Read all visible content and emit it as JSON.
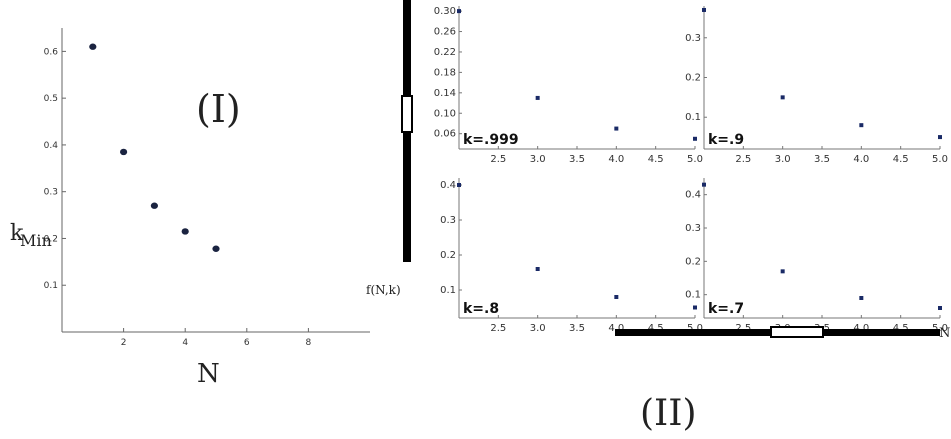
{
  "chart_data": [
    {
      "type": "scatter",
      "panel_label": "(I)",
      "xlabel": "N",
      "ylabel_main": "k",
      "ylabel_sub": "Min",
      "x_ticks": [
        "2",
        "4",
        "6",
        "8"
      ],
      "y_ticks": [
        "0.1",
        "0.2",
        "0.3",
        "0.4",
        "0.5",
        "0.6"
      ],
      "xlim": [
        0,
        10
      ],
      "ylim": [
        0,
        0.65
      ],
      "points": [
        {
          "x": 1,
          "y": 0.61
        },
        {
          "x": 2,
          "y": 0.385
        },
        {
          "x": 3,
          "y": 0.27
        },
        {
          "x": 4,
          "y": 0.215
        },
        {
          "x": 5,
          "y": 0.178
        }
      ]
    },
    {
      "type": "scatter",
      "group_label": "(II)",
      "xlabel": "N",
      "ylabel": "f(N,k)",
      "panels": [
        {
          "label": "k=.999",
          "xlim": [
            2.0,
            5.0
          ],
          "ylim": [
            0.03,
            0.31
          ],
          "x_ticks": [
            "2.5",
            "3.0",
            "3.5",
            "4.0",
            "4.5",
            "5.0"
          ],
          "y_ticks": [
            "0.06",
            "0.10",
            "0.14",
            "0.18",
            "0.22",
            "0.26",
            "0.30"
          ],
          "points": [
            {
              "x": 2,
              "y": 0.3
            },
            {
              "x": 3,
              "y": 0.13
            },
            {
              "x": 4,
              "y": 0.07
            },
            {
              "x": 5,
              "y": 0.05
            }
          ]
        },
        {
          "label": "k=.9",
          "xlim": [
            2.0,
            5.0
          ],
          "ylim": [
            0.02,
            0.38
          ],
          "x_ticks": [
            "2.5",
            "3.0",
            "3.5",
            "4.0",
            "4.5",
            "5.0"
          ],
          "y_ticks": [
            "0.1",
            "0.2",
            "0.3"
          ],
          "points": [
            {
              "x": 2,
              "y": 0.37
            },
            {
              "x": 3,
              "y": 0.15
            },
            {
              "x": 4,
              "y": 0.08
            },
            {
              "x": 5,
              "y": 0.05
            }
          ]
        },
        {
          "label": "k=.8",
          "xlim": [
            2.0,
            5.0
          ],
          "ylim": [
            0.02,
            0.42
          ],
          "x_ticks": [
            "2.5",
            "3.0",
            "3.5",
            "4.0",
            "4.5",
            "5.0"
          ],
          "y_ticks": [
            "0.1",
            "0.2",
            "0.3",
            "0.4"
          ],
          "points": [
            {
              "x": 2,
              "y": 0.4
            },
            {
              "x": 3,
              "y": 0.16
            },
            {
              "x": 4,
              "y": 0.08
            },
            {
              "x": 5,
              "y": 0.05
            }
          ]
        },
        {
          "label": "k=.7",
          "xlim": [
            2.0,
            5.0
          ],
          "ylim": [
            0.03,
            0.45
          ],
          "x_ticks": [
            "2.5",
            "3.0",
            "3.5",
            "4.0",
            "4.5",
            "5.0"
          ],
          "y_ticks": [
            "0.1",
            "0.2",
            "0.3",
            "0.4"
          ],
          "points": [
            {
              "x": 2,
              "y": 0.43
            },
            {
              "x": 3,
              "y": 0.17
            },
            {
              "x": 4,
              "y": 0.09
            },
            {
              "x": 5,
              "y": 0.06
            }
          ]
        }
      ]
    }
  ]
}
